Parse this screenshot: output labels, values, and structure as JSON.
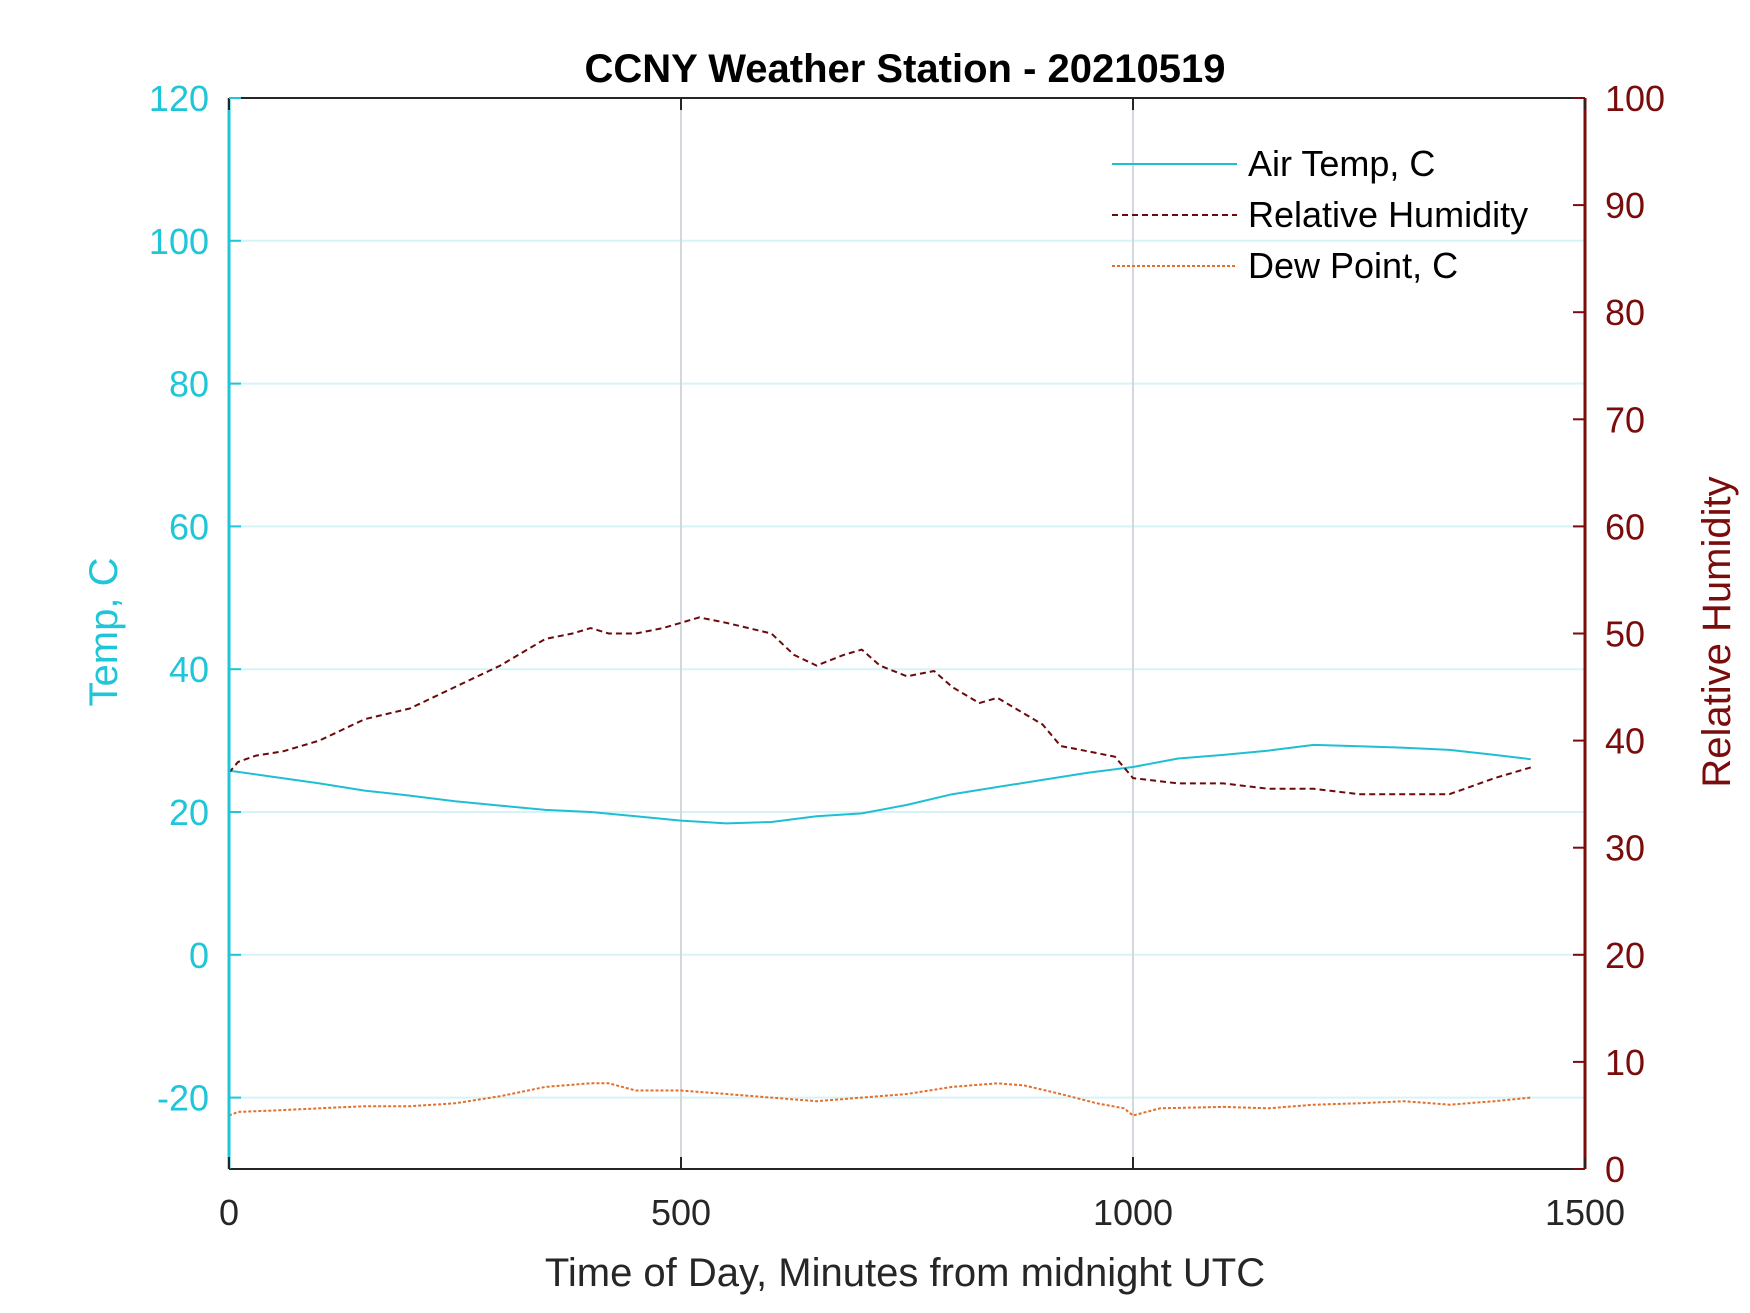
{
  "chart_data": {
    "type": "line",
    "title": "CCNY Weather Station - 20210519",
    "xlabel": "Time of Day, Minutes from midnight UTC",
    "ylabel_left": "Temp, C",
    "ylabel_right": "Relative Humidity",
    "xlim": [
      0,
      1500
    ],
    "ylim_left": [
      -30,
      120
    ],
    "ylim_right": [
      0,
      100
    ],
    "x_ticks": [
      0,
      500,
      1000,
      1500
    ],
    "y_ticks_left": [
      -20,
      0,
      20,
      40,
      60,
      80,
      100,
      120
    ],
    "y_ticks_right": [
      0,
      10,
      20,
      30,
      40,
      50,
      60,
      70,
      80,
      90,
      100
    ],
    "grid": true,
    "legend_position": "top-right",
    "colors": {
      "left_axis": "#1fc5d8",
      "right_axis": "#7a0c0c",
      "air_temp": "#1fbfd3",
      "humidity": "#6b0a0a",
      "dew_point": "#e0702c",
      "grid_horizontal": "#d6f3f7",
      "grid_vertical": "#d3d8de"
    },
    "series": [
      {
        "name": "Air Temp, C",
        "axis": "left",
        "style": "solid",
        "x": [
          0,
          50,
          100,
          150,
          200,
          250,
          300,
          350,
          400,
          450,
          500,
          550,
          600,
          650,
          700,
          750,
          800,
          850,
          900,
          950,
          1000,
          1050,
          1100,
          1150,
          1200,
          1250,
          1300,
          1350,
          1400,
          1440
        ],
        "values": [
          25.8,
          24.9,
          24.0,
          23.0,
          22.3,
          21.5,
          20.9,
          20.3,
          20.0,
          19.4,
          18.8,
          18.4,
          18.6,
          19.4,
          19.8,
          21.0,
          22.5,
          23.5,
          24.5,
          25.5,
          26.3,
          27.5,
          28.0,
          28.6,
          29.4,
          29.2,
          29.0,
          28.7,
          28.0,
          27.4
        ]
      },
      {
        "name": "Relative Humidity",
        "axis": "right",
        "style": "dashed",
        "x": [
          0,
          10,
          30,
          60,
          100,
          150,
          200,
          250,
          300,
          350,
          380,
          400,
          420,
          450,
          480,
          500,
          520,
          550,
          600,
          625,
          650,
          680,
          700,
          720,
          750,
          780,
          800,
          830,
          850,
          870,
          900,
          920,
          950,
          980,
          1000,
          1050,
          1100,
          1150,
          1200,
          1250,
          1300,
          1350,
          1400,
          1440
        ],
        "values": [
          37.0,
          38.0,
          38.6,
          39.0,
          40.0,
          42.0,
          43.0,
          45.0,
          47.0,
          49.5,
          50.0,
          50.5,
          50.0,
          50.0,
          50.5,
          51.0,
          51.5,
          51.0,
          50.0,
          48.0,
          47.0,
          48.0,
          48.5,
          47.0,
          46.0,
          46.5,
          45.0,
          43.5,
          44.0,
          43.0,
          41.5,
          39.5,
          39.0,
          38.5,
          36.5,
          36.0,
          36.0,
          35.5,
          35.5,
          35.0,
          35.0,
          35.0,
          36.5,
          37.5
        ]
      },
      {
        "name": "Dew Point, C",
        "axis": "left",
        "style": "dotted",
        "x": [
          0,
          10,
          50,
          100,
          150,
          200,
          250,
          300,
          350,
          400,
          420,
          450,
          500,
          550,
          600,
          650,
          700,
          750,
          800,
          850,
          880,
          920,
          960,
          990,
          1000,
          1030,
          1100,
          1150,
          1200,
          1250,
          1300,
          1350,
          1400,
          1440
        ],
        "values": [
          -22.5,
          -22.0,
          -21.8,
          -21.5,
          -21.2,
          -21.2,
          -20.8,
          -19.8,
          -18.5,
          -18.0,
          -18.0,
          -19.0,
          -19.0,
          -19.5,
          -20.0,
          -20.5,
          -20.0,
          -19.5,
          -18.5,
          -18.0,
          -18.3,
          -19.5,
          -20.8,
          -21.5,
          -22.5,
          -21.5,
          -21.3,
          -21.5,
          -21.0,
          -20.8,
          -20.5,
          -21.0,
          -20.5,
          -20.0
        ]
      }
    ]
  }
}
